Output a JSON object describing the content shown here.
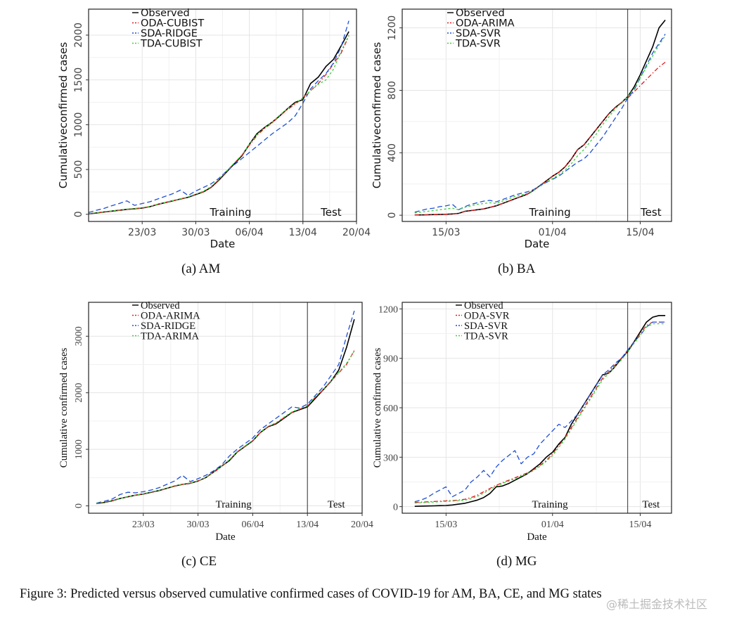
{
  "figure": {
    "caption": "Figure 3: Predicted versus observed cumulative confirmed cases of COVID-19 for AM, BA, CE, and MG states",
    "watermark": "@稀土掘金技术社区"
  },
  "colors": {
    "observed": "#000000",
    "oda": "#e41a1c",
    "sda": "#1f4fd6",
    "tda": "#3cd03c"
  },
  "chart_data": [
    {
      "id": "am",
      "type": "line",
      "subcaption": "(a) AM",
      "xlabel": "Date",
      "ylabel": "Cumulativeconfirmed cases",
      "x_ticks": [
        "23/03",
        "30/03",
        "06/04",
        "13/04",
        "20/04"
      ],
      "x_tick_days": [
        8,
        15,
        22,
        29,
        36
      ],
      "xlim": [
        1,
        36
      ],
      "ylim": [
        -80,
        2290
      ],
      "y_ticks": [
        0,
        500,
        1000,
        1500,
        2000
      ],
      "split_day": 29,
      "region_labels": [
        "Training",
        "Test"
      ],
      "legend": [
        "Observed",
        "ODA-CUBIST",
        "SDA-RIDGE",
        "TDA-CUBIST"
      ],
      "x": [
        1,
        2,
        3,
        4,
        5,
        6,
        7,
        8,
        9,
        10,
        11,
        12,
        13,
        14,
        15,
        16,
        17,
        18,
        19,
        20,
        21,
        22,
        23,
        24,
        25,
        26,
        27,
        28,
        29,
        30,
        31,
        32,
        33,
        34,
        35
      ],
      "series": [
        {
          "name": "Observed",
          "values": [
            5,
            15,
            25,
            35,
            45,
            55,
            62,
            70,
            85,
            110,
            130,
            150,
            170,
            190,
            220,
            250,
            300,
            380,
            470,
            560,
            650,
            780,
            900,
            970,
            1030,
            1100,
            1180,
            1250,
            1280,
            1460,
            1530,
            1650,
            1730,
            1880,
            2040
          ]
        },
        {
          "name": "ODA-CUBIST",
          "values": [
            6,
            14,
            24,
            33,
            43,
            53,
            61,
            70,
            86,
            108,
            128,
            150,
            171,
            192,
            222,
            252,
            302,
            385,
            475,
            568,
            655,
            770,
            880,
            960,
            1020,
            1100,
            1170,
            1230,
            1300,
            1380,
            1460,
            1560,
            1680,
            1800,
            1990
          ]
        },
        {
          "name": "SDA-RIDGE",
          "values": [
            20,
            45,
            65,
            95,
            120,
            150,
            100,
            120,
            140,
            170,
            200,
            230,
            270,
            210,
            260,
            300,
            340,
            400,
            480,
            550,
            620,
            690,
            760,
            830,
            900,
            960,
            1020,
            1100,
            1240,
            1400,
            1490,
            1570,
            1690,
            1870,
            2160
          ]
        },
        {
          "name": "TDA-CUBIST",
          "values": [
            8,
            18,
            28,
            38,
            48,
            58,
            65,
            74,
            88,
            112,
            132,
            152,
            173,
            195,
            225,
            258,
            310,
            390,
            480,
            570,
            660,
            780,
            890,
            965,
            1030,
            1110,
            1180,
            1240,
            1300,
            1380,
            1450,
            1500,
            1620,
            1820,
            2000
          ]
        }
      ]
    },
    {
      "id": "ba",
      "type": "line",
      "subcaption": "(b) BA",
      "xlabel": "Date",
      "ylabel": "Cumulativeconfirmed cases",
      "x_ticks": [
        "15/03",
        "01/04",
        "15/04"
      ],
      "x_tick_days": [
        4,
        21,
        35
      ],
      "xlim": [
        -3,
        40
      ],
      "ylim": [
        -40,
        1320
      ],
      "y_ticks": [
        0,
        400,
        800,
        1200
      ],
      "split_day": 33,
      "region_labels": [
        "Training",
        "Test"
      ],
      "legend": [
        "Observed",
        "ODA-ARIMA",
        "SDA-SVR",
        "TDA-SVR"
      ],
      "x": [
        -1,
        0,
        1,
        2,
        3,
        4,
        5,
        6,
        7,
        8,
        9,
        10,
        11,
        12,
        13,
        14,
        15,
        16,
        17,
        18,
        19,
        20,
        21,
        22,
        23,
        24,
        25,
        26,
        27,
        28,
        29,
        30,
        31,
        32,
        33,
        34,
        35,
        36,
        37,
        38,
        39
      ],
      "series": [
        {
          "name": "Observed",
          "values": [
            2,
            2,
            3,
            4,
            5,
            6,
            8,
            12,
            25,
            30,
            35,
            40,
            50,
            60,
            75,
            90,
            105,
            120,
            135,
            160,
            190,
            220,
            250,
            275,
            310,
            360,
            420,
            450,
            500,
            550,
            600,
            650,
            690,
            720,
            760,
            820,
            900,
            990,
            1080,
            1200,
            1250
          ]
        },
        {
          "name": "ODA-ARIMA",
          "values": [
            2,
            2,
            3,
            4,
            5,
            6,
            8,
            12,
            25,
            30,
            35,
            40,
            50,
            60,
            75,
            90,
            105,
            120,
            135,
            160,
            190,
            220,
            250,
            275,
            310,
            360,
            420,
            450,
            500,
            550,
            600,
            650,
            690,
            720,
            750,
            790,
            830,
            870,
            910,
            950,
            980
          ]
        },
        {
          "name": "SDA-SVR",
          "values": [
            20,
            30,
            40,
            45,
            55,
            60,
            70,
            35,
            55,
            70,
            80,
            90,
            95,
            85,
            100,
            115,
            130,
            140,
            150,
            165,
            190,
            210,
            230,
            250,
            280,
            310,
            340,
            360,
            400,
            450,
            500,
            560,
            620,
            680,
            750,
            800,
            880,
            960,
            1040,
            1100,
            1160
          ]
        },
        {
          "name": "TDA-SVR",
          "values": [
            15,
            20,
            25,
            30,
            35,
            40,
            45,
            35,
            50,
            60,
            70,
            75,
            80,
            75,
            90,
            105,
            120,
            130,
            140,
            160,
            185,
            210,
            235,
            260,
            290,
            330,
            380,
            420,
            470,
            520,
            580,
            630,
            680,
            720,
            760,
            810,
            880,
            950,
            1020,
            1090,
            1150
          ]
        }
      ]
    },
    {
      "id": "ce",
      "type": "line",
      "subcaption": "(c) CE",
      "xlabel": "Date",
      "ylabel": "Cumulative confirmed cases",
      "x_ticks": [
        "23/03",
        "30/03",
        "06/04",
        "13/04",
        "20/04"
      ],
      "x_tick_days": [
        8,
        15,
        22,
        29,
        36
      ],
      "xlim": [
        1,
        36
      ],
      "ylim": [
        -130,
        3600
      ],
      "y_ticks": [
        0,
        1000,
        2000,
        3000
      ],
      "split_day": 29,
      "region_labels": [
        "Training",
        "Test"
      ],
      "legend": [
        "Observed",
        "ODA-ARIMA",
        "SDA-RIDGE",
        "TDA-ARIMA"
      ],
      "x": [
        2,
        3,
        4,
        5,
        6,
        7,
        8,
        9,
        10,
        11,
        12,
        13,
        14,
        15,
        16,
        17,
        18,
        19,
        20,
        21,
        22,
        23,
        24,
        25,
        26,
        27,
        28,
        29,
        30,
        31,
        32,
        33,
        34,
        35
      ],
      "series": [
        {
          "name": "Observed",
          "values": [
            40,
            60,
            90,
            130,
            160,
            190,
            210,
            240,
            270,
            310,
            350,
            380,
            400,
            440,
            500,
            600,
            700,
            800,
            950,
            1050,
            1150,
            1300,
            1400,
            1450,
            1550,
            1650,
            1700,
            1750,
            1900,
            2050,
            2200,
            2400,
            2800,
            3300
          ]
        },
        {
          "name": "ODA-ARIMA",
          "values": [
            40,
            62,
            92,
            128,
            158,
            188,
            212,
            240,
            268,
            308,
            348,
            378,
            400,
            440,
            500,
            590,
            690,
            810,
            950,
            1050,
            1150,
            1300,
            1400,
            1460,
            1560,
            1650,
            1710,
            1760,
            1920,
            2050,
            2200,
            2350,
            2500,
            2750
          ]
        },
        {
          "name": "SDA-RIDGE",
          "values": [
            50,
            80,
            120,
            200,
            240,
            230,
            250,
            280,
            320,
            380,
            440,
            540,
            430,
            480,
            540,
            620,
            720,
            880,
            1000,
            1100,
            1200,
            1350,
            1450,
            1550,
            1650,
            1750,
            1730,
            1800,
            1950,
            2100,
            2300,
            2500,
            3000,
            3450
          ]
        },
        {
          "name": "TDA-ARIMA",
          "values": [
            45,
            65,
            95,
            130,
            160,
            190,
            215,
            245,
            275,
            315,
            355,
            385,
            405,
            445,
            505,
            595,
            700,
            815,
            960,
            1060,
            1160,
            1310,
            1410,
            1470,
            1570,
            1660,
            1720,
            1770,
            1930,
            2060,
            2210,
            2360,
            2520,
            2740
          ]
        }
      ]
    },
    {
      "id": "mg",
      "type": "line",
      "subcaption": "(d) MG",
      "xlabel": "Date",
      "ylabel": "Cumulative confirmed cases",
      "x_ticks": [
        "15/03",
        "01/04",
        "15/04"
      ],
      "x_tick_days": [
        4,
        21,
        35
      ],
      "xlim": [
        -3,
        40
      ],
      "ylim": [
        -40,
        1240
      ],
      "y_ticks": [
        0,
        300,
        600,
        900,
        1200
      ],
      "split_day": 33,
      "region_labels": [
        "Training",
        "Test"
      ],
      "legend": [
        "Observed",
        "ODA-SVR",
        "SDA-SVR",
        "TDA-SVR"
      ],
      "x": [
        -1,
        0,
        1,
        2,
        3,
        4,
        5,
        6,
        7,
        8,
        9,
        10,
        11,
        12,
        13,
        14,
        15,
        16,
        17,
        18,
        19,
        20,
        21,
        22,
        23,
        24,
        25,
        26,
        27,
        28,
        29,
        30,
        31,
        32,
        33,
        34,
        35,
        36,
        37,
        38,
        39
      ],
      "series": [
        {
          "name": "Observed",
          "values": [
            2,
            3,
            4,
            5,
            6,
            7,
            10,
            15,
            20,
            30,
            40,
            55,
            80,
            120,
            125,
            140,
            160,
            180,
            200,
            230,
            260,
            300,
            330,
            380,
            420,
            500,
            560,
            620,
            680,
            740,
            800,
            810,
            850,
            900,
            940,
            1000,
            1060,
            1120,
            1150,
            1160,
            1160
          ]
        },
        {
          "name": "ODA-SVR",
          "values": [
            25,
            27,
            29,
            31,
            33,
            35,
            37,
            40,
            45,
            55,
            70,
            90,
            110,
            130,
            145,
            160,
            175,
            190,
            205,
            225,
            250,
            280,
            320,
            370,
            420,
            480,
            540,
            600,
            660,
            720,
            780,
            820,
            860,
            900,
            950,
            1000,
            1050,
            1100,
            1120,
            1120,
            1120
          ]
        },
        {
          "name": "SDA-SVR",
          "values": [
            30,
            40,
            55,
            80,
            100,
            120,
            60,
            80,
            100,
            150,
            180,
            220,
            180,
            240,
            280,
            310,
            340,
            260,
            300,
            320,
            380,
            420,
            460,
            500,
            480,
            520,
            560,
            620,
            680,
            740,
            800,
            830,
            870,
            900,
            950,
            1000,
            1040,
            1090,
            1120,
            1120,
            1120
          ]
        },
        {
          "name": "TDA-SVR",
          "values": [
            22,
            24,
            26,
            28,
            30,
            32,
            34,
            36,
            40,
            48,
            62,
            82,
            104,
            125,
            140,
            155,
            170,
            185,
            200,
            220,
            245,
            275,
            310,
            360,
            410,
            470,
            530,
            590,
            650,
            710,
            770,
            810,
            850,
            890,
            940,
            990,
            1040,
            1090,
            1110,
            1110,
            1110
          ]
        }
      ]
    }
  ]
}
